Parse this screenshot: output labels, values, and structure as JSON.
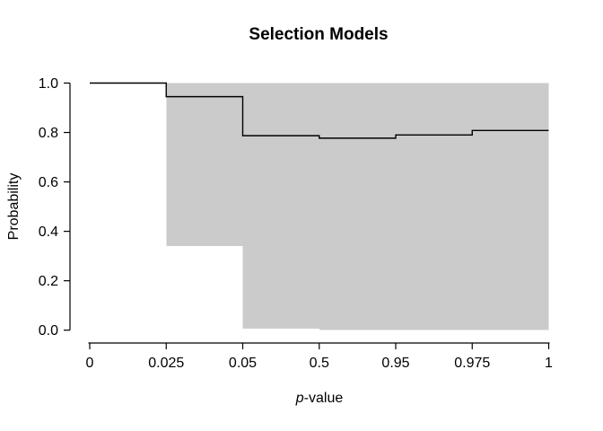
{
  "figure": {
    "background": "#ffffff"
  },
  "chart_data": {
    "type": "step-line-with-confidence-band",
    "title": "Selection Models",
    "xlabel": "p-value",
    "xlabel_italic": "p",
    "xlabel_rest": "-value",
    "ylabel": "Probability",
    "x_ticks": [
      "0",
      "0.025",
      "0.05",
      "0.5",
      "0.95",
      "0.975",
      "1"
    ],
    "x_scale": "ticks equally spaced (non-linear p-value breakpoints)",
    "y_ticks": [
      "0.0",
      "0.2",
      "0.4",
      "0.6",
      "0.8",
      "1.0"
    ],
    "ylim": [
      0,
      1
    ],
    "grid": "off",
    "legend": "none",
    "line_color": "#000000",
    "band_color": "#cbcbcb",
    "axis_color": "#000000",
    "step_segments": [
      {
        "from": "0",
        "to": "0.025",
        "value": 1.0
      },
      {
        "from": "0.025",
        "to": "0.05",
        "value": 0.945
      },
      {
        "from": "0.05",
        "to": "0.5",
        "value": 0.787
      },
      {
        "from": "0.5",
        "to": "0.95",
        "value": 0.777
      },
      {
        "from": "0.95",
        "to": "0.975",
        "value": 0.79
      },
      {
        "from": "0.975",
        "to": "1",
        "value": 0.808
      }
    ],
    "confidence_band": [
      {
        "from": "0.025",
        "to": "0.05",
        "lower": 0.34,
        "upper": 1.0
      },
      {
        "from": "0.05",
        "to": "0.5",
        "lower": 0.007,
        "upper": 1.0
      },
      {
        "from": "0.5",
        "to": "1",
        "lower": 0.0,
        "upper": 1.0
      }
    ]
  }
}
